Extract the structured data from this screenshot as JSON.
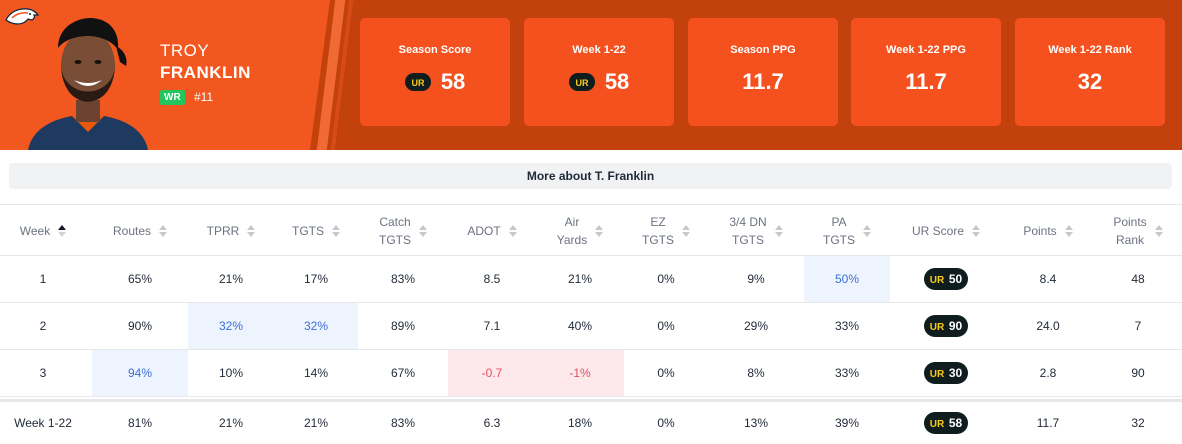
{
  "player": {
    "first_name": "TROY",
    "last_name": "FRANKLIN",
    "position": "WR",
    "jersey": "#11"
  },
  "stat_cards": [
    {
      "label": "Season Score",
      "value": "58",
      "has_logo": true
    },
    {
      "label": "Week 1-22",
      "value": "58",
      "has_logo": true
    },
    {
      "label": "Season PPG",
      "value": "11.7",
      "has_logo": false
    },
    {
      "label": "Week 1-22 PPG",
      "value": "11.7",
      "has_logo": false
    },
    {
      "label": "Week 1-22 Rank",
      "value": "32",
      "has_logo": false
    }
  ],
  "more_button_label": "More about T. Franklin",
  "table": {
    "headers": {
      "week": "Week",
      "routes": "Routes",
      "tprr": "TPRR",
      "tgts": "TGTS",
      "catch_1": "Catch",
      "catch_2": "TGTS",
      "adot": "ADOT",
      "air_1": "Air",
      "air_2": "Yards",
      "ez_1": "EZ",
      "ez_2": "TGTS",
      "dn_1": "3/4 DN",
      "dn_2": "TGTS",
      "pa_1": "PA",
      "pa_2": "TGTS",
      "ur": "UR Score",
      "points": "Points",
      "rank_1": "Points",
      "rank_2": "Rank"
    },
    "rows": [
      {
        "week": "1",
        "routes": "65%",
        "tprr": "21%",
        "tgts": "17%",
        "catch": "83%",
        "adot": "8.5",
        "air": "21%",
        "ez": "0%",
        "dn": "9%",
        "pa": "50%",
        "ur": "50",
        "points": "8.4",
        "rank": "48"
      },
      {
        "week": "2",
        "routes": "90%",
        "tprr": "32%",
        "tgts": "32%",
        "catch": "89%",
        "adot": "7.1",
        "air": "40%",
        "ez": "0%",
        "dn": "29%",
        "pa": "33%",
        "ur": "90",
        "points": "24.0",
        "rank": "7"
      },
      {
        "week": "3",
        "routes": "94%",
        "tprr": "10%",
        "tgts": "14%",
        "catch": "67%",
        "adot": "-0.7",
        "air": "-1%",
        "ez": "0%",
        "dn": "8%",
        "pa": "33%",
        "ur": "30",
        "points": "2.8",
        "rank": "90"
      }
    ],
    "total": {
      "week": "Week 1-22",
      "routes": "81%",
      "tprr": "21%",
      "tgts": "21%",
      "catch": "83%",
      "adot": "6.3",
      "air": "18%",
      "ez": "0%",
      "dn": "13%",
      "pa": "39%",
      "ur": "58",
      "points": "11.7",
      "rank": "32"
    }
  },
  "colors": {
    "header_bg": "#c2410c",
    "header_left": "#f1571e",
    "card_bg": "#f4511e",
    "highlight_blue": "#eef4fd",
    "highlight_red": "#fde8eb",
    "ur_pill": "#0f1d1f",
    "ur_accent": "#facc15",
    "wr_badge": "#22c55e"
  }
}
